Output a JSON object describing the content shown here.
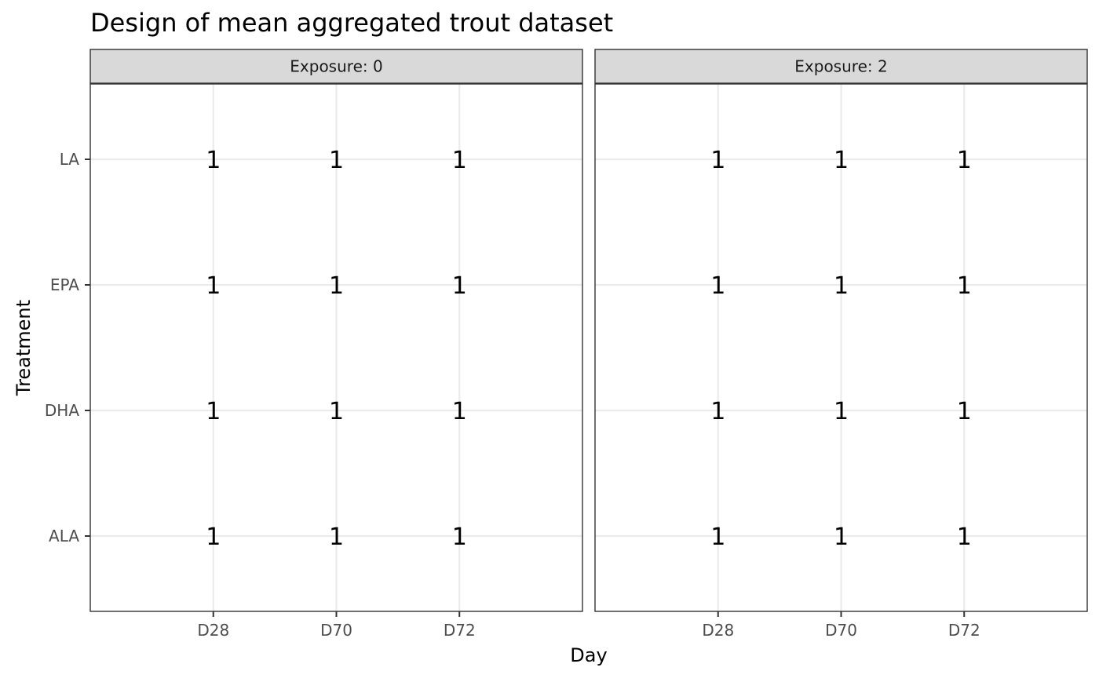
{
  "chart_data": {
    "type": "table",
    "title": "Design of mean aggregated trout dataset",
    "xlabel": "Day",
    "ylabel": "Treatment",
    "categories": [
      "D28",
      "D70",
      "D72"
    ],
    "y_categories": [
      "LA",
      "EPA",
      "DHA",
      "ALA"
    ],
    "grid": true,
    "panels": [
      {
        "strip_label": "Exposure: 0",
        "cells": [
          {
            "x": "D28",
            "y": "LA",
            "value": 1
          },
          {
            "x": "D70",
            "y": "LA",
            "value": 1
          },
          {
            "x": "D72",
            "y": "LA",
            "value": 1
          },
          {
            "x": "D28",
            "y": "EPA",
            "value": 1
          },
          {
            "x": "D70",
            "y": "EPA",
            "value": 1
          },
          {
            "x": "D72",
            "y": "EPA",
            "value": 1
          },
          {
            "x": "D28",
            "y": "DHA",
            "value": 1
          },
          {
            "x": "D70",
            "y": "DHA",
            "value": 1
          },
          {
            "x": "D72",
            "y": "DHA",
            "value": 1
          },
          {
            "x": "D28",
            "y": "ALA",
            "value": 1
          },
          {
            "x": "D70",
            "y": "ALA",
            "value": 1
          },
          {
            "x": "D72",
            "y": "ALA",
            "value": 1
          }
        ]
      },
      {
        "strip_label": "Exposure: 2",
        "cells": [
          {
            "x": "D28",
            "y": "LA",
            "value": 1
          },
          {
            "x": "D70",
            "y": "LA",
            "value": 1
          },
          {
            "x": "D72",
            "y": "LA",
            "value": 1
          },
          {
            "x": "D28",
            "y": "EPA",
            "value": 1
          },
          {
            "x": "D70",
            "y": "EPA",
            "value": 1
          },
          {
            "x": "D72",
            "y": "EPA",
            "value": 1
          },
          {
            "x": "D28",
            "y": "DHA",
            "value": 1
          },
          {
            "x": "D70",
            "y": "DHA",
            "value": 1
          },
          {
            "x": "D72",
            "y": "DHA",
            "value": 1
          },
          {
            "x": "D28",
            "y": "ALA",
            "value": 1
          },
          {
            "x": "D70",
            "y": "ALA",
            "value": 1
          },
          {
            "x": "D72",
            "y": "ALA",
            "value": 1
          }
        ]
      }
    ]
  },
  "colors": {
    "strip_fill": "#d9d9d9",
    "panel_border": "#333333",
    "grid": "#ebebeb",
    "tick_text": "#4d4d4d",
    "text": "#000000"
  }
}
